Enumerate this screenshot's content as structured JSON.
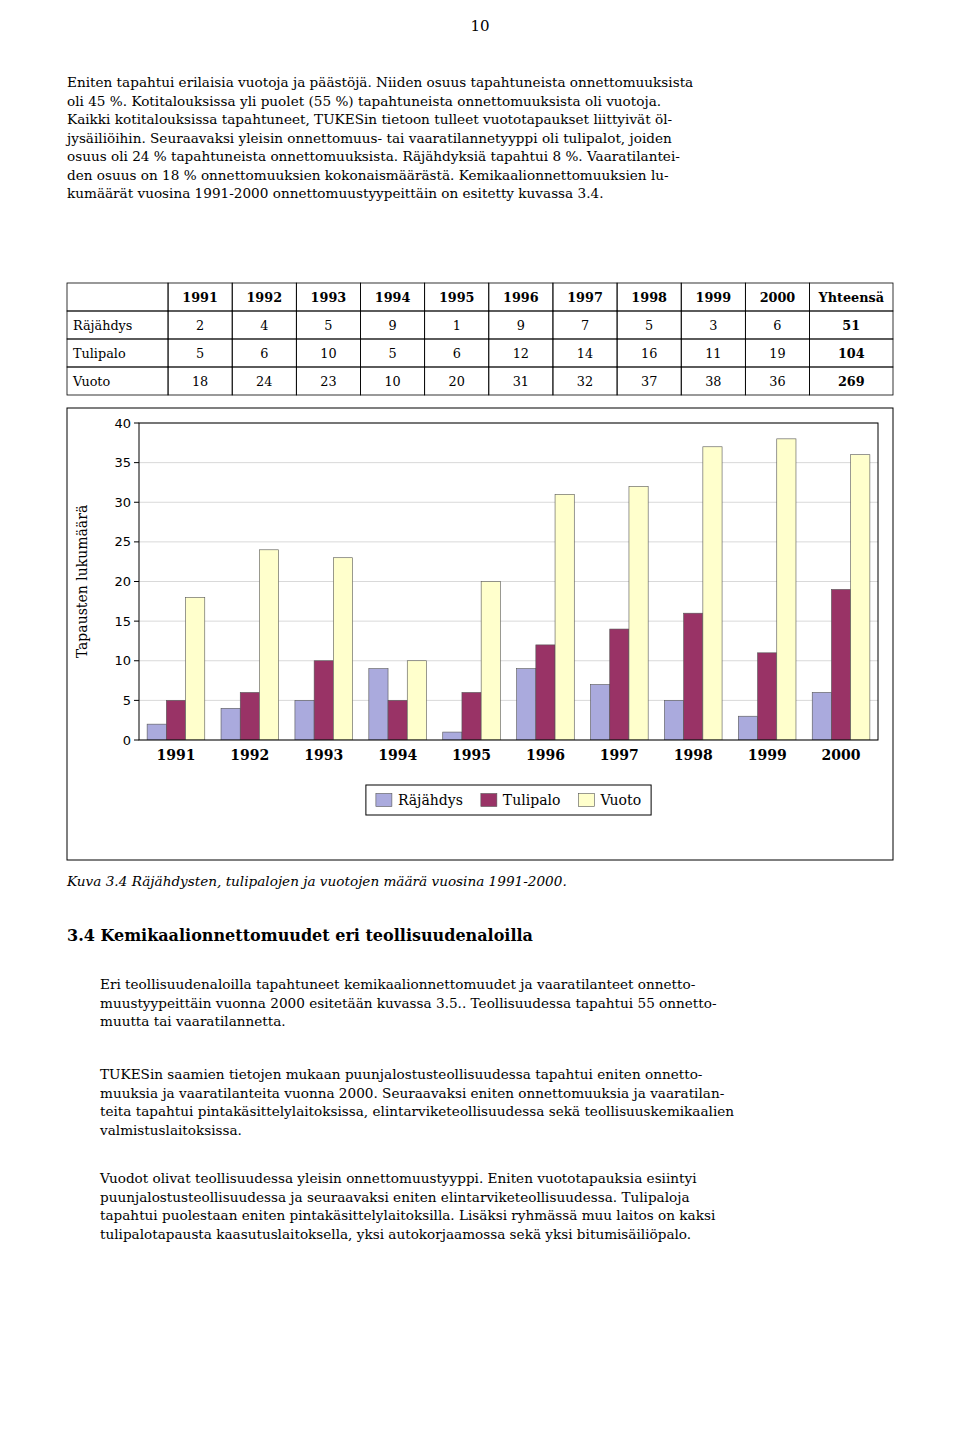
{
  "page_number": "10",
  "para1_lines": [
    "Eniten tapahtui erilaisia vuotoja ja päästöjä. Niiden osuus tapahtuneista onnettomuuksista",
    "oli 45 %. Kotitalouksissa yli puolet (55 %) tapahtuneista onnettomuuksista oli vuotoja.",
    "Kaikki kotitalouksissa tapahtuneet, TUKESin tietoon tulleet vuototapaukset liittyivät öl-",
    "jysäiliöihin. Seuraavaksi yleisin onnettomuus- tai vaaratilannetyyppi oli tulipalot, joiden",
    "osuus oli 24 % tapahtuneista onnettomuuksista. Räjähdyksiä tapahtui 8 %. Vaaratilantei-",
    "den osuus on 18 % onnettomuuksien kokonaismäärästä. Kemikaalionnettomuuksien lu-",
    "kumäärät vuosina 1991-2000 onnettomuustyypeittäin on esitetty kuvassa 3.4."
  ],
  "table": {
    "columns": [
      null,
      "1991",
      "1992",
      "1993",
      "1994",
      "1995",
      "1996",
      "1997",
      "1998",
      "1999",
      "2000",
      "Yhteensä"
    ],
    "rows": [
      [
        "Räjähdys",
        "2",
        "4",
        "5",
        "9",
        "1",
        "9",
        "7",
        "5",
        "3",
        "6",
        "51"
      ],
      [
        "Tulipalo",
        "5",
        "6",
        "10",
        "5",
        "6",
        "12",
        "14",
        "16",
        "11",
        "19",
        "104"
      ],
      [
        "Vuoto",
        "18",
        "24",
        "23",
        "10",
        "20",
        "31",
        "32",
        "37",
        "38",
        "36",
        "269"
      ]
    ]
  },
  "chart_data": {
    "type": "bar",
    "categories": [
      "1991",
      "1992",
      "1993",
      "1994",
      "1995",
      "1996",
      "1997",
      "1998",
      "1999",
      "2000"
    ],
    "series": [
      {
        "name": "Räjähdys",
        "color": "#AAAADD",
        "values": [
          2,
          4,
          5,
          9,
          1,
          9,
          7,
          5,
          3,
          6
        ]
      },
      {
        "name": "Tulipalo",
        "color": "#993366",
        "values": [
          5,
          6,
          10,
          5,
          6,
          12,
          14,
          16,
          11,
          19
        ]
      },
      {
        "name": "Vuoto",
        "color": "#FFFFCC",
        "values": [
          18,
          24,
          23,
          10,
          20,
          31,
          32,
          37,
          38,
          36
        ]
      }
    ],
    "ylabel": "Tapausten lukumäärä",
    "ylim": [
      0,
      40
    ],
    "yticks": [
      0,
      5,
      10,
      15,
      20,
      25,
      30,
      35,
      40
    ],
    "grid": true,
    "legend": "bottom"
  },
  "caption": "Kuva 3.4  Räjähdysten, tulipalojen ja vuotojen määrä vuosina 1991-2000.",
  "section_title": "3.4  Kemikaalionnettomuudet eri teollisuudenaloilla",
  "para2_lines": [
    "Eri teollisuudenaloilla tapahtuneet kemikaalionnettomuudet ja vaaratilanteet onnetto-",
    "muustyypeittäin vuonna 2000 esitetään kuvassa 3.5.. Teollisuudessa tapahtui 55 onnetto-",
    "muutta tai vaaratilannetta."
  ],
  "para3_lines": [
    "TUKESin saamien tietojen mukaan puunjalostusteollisuudessa tapahtui eniten onnetto-",
    "muuksia ja vaaratilanteita vuonna 2000. Seuraavaksi eniten onnettomuuksia ja vaaratilan-",
    "teita tapahtui pintakäsittelylaitoksissa, elintarviketeollisuudessa sekä teollisuuskemikaalien",
    "valmistuslaitoksissa."
  ],
  "para4_lines": [
    "Vuodot olivat teollisuudessa yleisin onnettomuustyyppi. Eniten vuototapauksia esiintyi",
    "puunjalostusteollisuudessa ja seuraavaksi eniten elintarviketeollisuudessa. Tulipaloja",
    "tapahtui puolestaan eniten pintakäsittelylaitoksilla. Lisäksi ryhmässä muu laitos on kaksi",
    "tulipalotapausta kaasutuslaitoksella,  yksi autokorjaamossa sekä yksi bitumisäiliöpalo."
  ]
}
